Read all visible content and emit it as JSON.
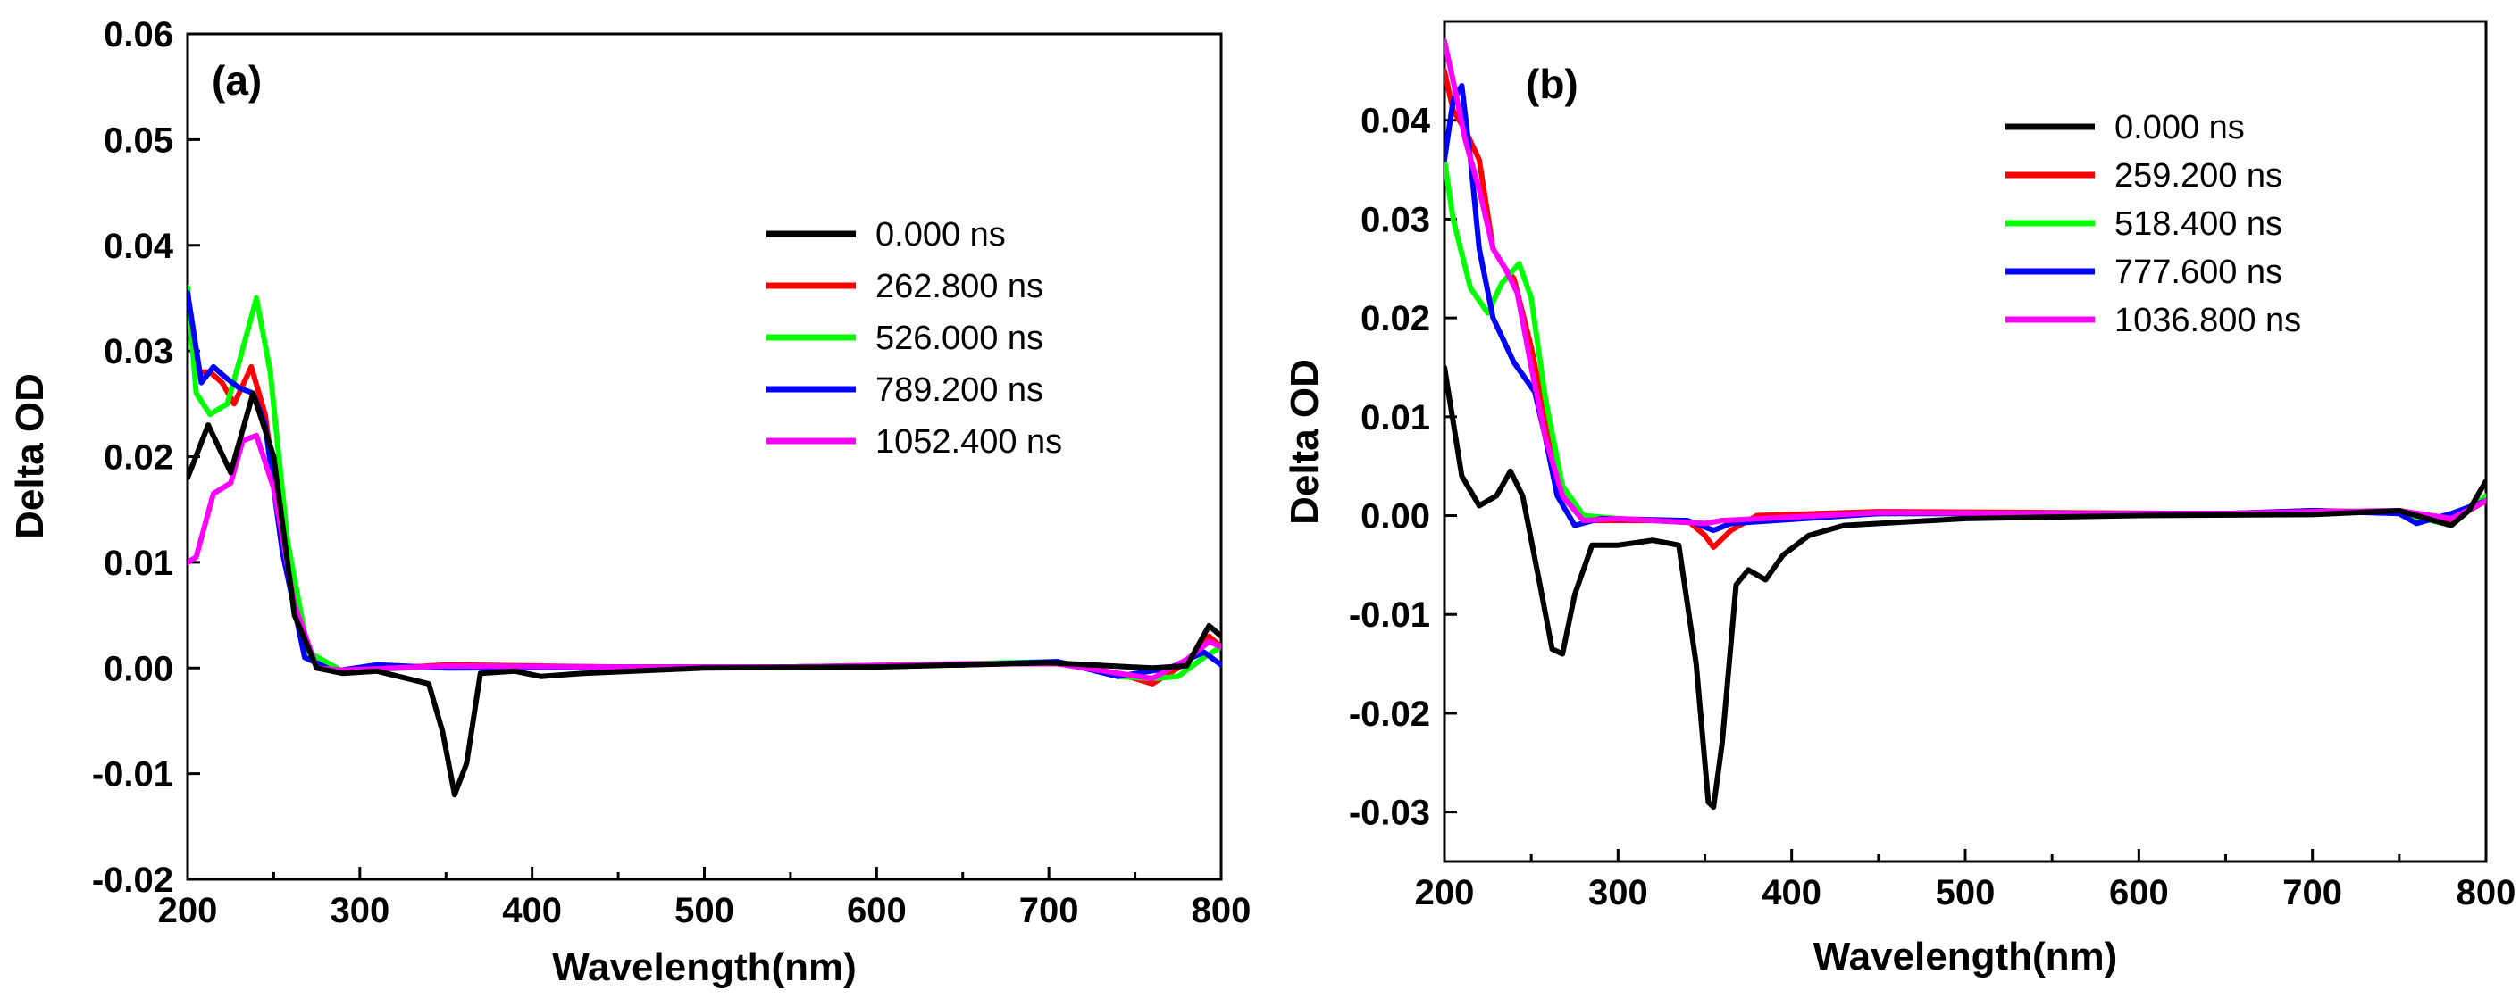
{
  "chart_data": [
    {
      "type": "line",
      "panel_label": "(a)",
      "title": "",
      "xlabel": "Wavelength(nm)",
      "ylabel": "Delta OD",
      "xlim": [
        200,
        800
      ],
      "ylim": [
        -0.02,
        0.06
      ],
      "xticks": [
        200,
        300,
        400,
        500,
        600,
        700,
        800
      ],
      "xtick_labels": [
        "200",
        "300",
        "400",
        "500",
        "600",
        "700",
        "800"
      ],
      "yticks": [
        -0.02,
        -0.01,
        0.0,
        0.01,
        0.02,
        0.03,
        0.04,
        0.05,
        0.06
      ],
      "ytick_labels": [
        "-0.02",
        "-0.01",
        "0.00",
        "0.01",
        "0.02",
        "0.03",
        "0.04",
        "0.05",
        "0.06"
      ],
      "legend_position": "top-right",
      "grid": false,
      "series": [
        {
          "name": "0.000 ns",
          "color": "#000000",
          "x": [
            200,
            212,
            225,
            238,
            250,
            262,
            275,
            290,
            310,
            340,
            348,
            355,
            362,
            370,
            390,
            405,
            430,
            500,
            600,
            700,
            760,
            780,
            793,
            800
          ],
          "y": [
            0.018,
            0.023,
            0.0185,
            0.026,
            0.02,
            0.005,
            0.0,
            -0.0005,
            -0.0003,
            -0.0015,
            -0.006,
            -0.012,
            -0.009,
            -0.0005,
            -0.0003,
            -0.0008,
            -0.0005,
            0.0,
            0.0001,
            0.0005,
            0.0,
            0.0002,
            0.004,
            0.003
          ]
        },
        {
          "name": "262.800 ns",
          "color": "#ff0000",
          "x": [
            200,
            205,
            213,
            220,
            227,
            237,
            245,
            255,
            268,
            290,
            350,
            450,
            550,
            650,
            705,
            740,
            760,
            780,
            793,
            800
          ],
          "y": [
            0.035,
            0.028,
            0.028,
            0.027,
            0.025,
            0.0285,
            0.024,
            0.012,
            0.001,
            -0.0003,
            0.0003,
            0.0001,
            0.0001,
            0.0003,
            0.0005,
            -0.0005,
            -0.0015,
            0.0005,
            0.003,
            0.002
          ]
        },
        {
          "name": "526.000 ns",
          "color": "#00ff00",
          "x": [
            200,
            205,
            213,
            223,
            230,
            240,
            248,
            258,
            270,
            290,
            350,
            450,
            550,
            650,
            705,
            740,
            760,
            775,
            790,
            800
          ],
          "y": [
            0.036,
            0.026,
            0.024,
            0.025,
            0.029,
            0.035,
            0.028,
            0.012,
            0.0015,
            -0.0003,
            0.0002,
            0.0001,
            0.0001,
            0.0004,
            0.0006,
            -0.0008,
            -0.001,
            -0.0008,
            0.001,
            0.002
          ]
        },
        {
          "name": "789.200 ns",
          "color": "#0000ff",
          "x": [
            200,
            208,
            215,
            222,
            230,
            238,
            245,
            255,
            268,
            285,
            310,
            350,
            450,
            550,
            650,
            705,
            740,
            770,
            790,
            800
          ],
          "y": [
            0.0355,
            0.027,
            0.0285,
            0.0275,
            0.0265,
            0.026,
            0.023,
            0.011,
            0.001,
            -0.0003,
            0.0003,
            0.0,
            0.0001,
            0.0001,
            0.0003,
            0.0006,
            -0.0008,
            0.0,
            0.0015,
            0.0003
          ]
        },
        {
          "name": "1052.400 ns",
          "color": "#ff00ff",
          "x": [
            200,
            205,
            215,
            225,
            232,
            240,
            250,
            262,
            275,
            290,
            350,
            450,
            550,
            650,
            705,
            740,
            760,
            780,
            793,
            800
          ],
          "y": [
            0.01,
            0.0105,
            0.0165,
            0.0175,
            0.0215,
            0.022,
            0.017,
            0.006,
            0.0,
            -0.0002,
            0.0002,
            0.0001,
            0.0001,
            0.0004,
            0.0004,
            -0.0005,
            -0.001,
            0.0008,
            0.0025,
            0.002
          ]
        }
      ]
    },
    {
      "type": "line",
      "panel_label": "(b)",
      "title": "",
      "xlabel": "Wavelength(nm)",
      "ylabel": "Delta OD",
      "xlim": [
        200,
        800
      ],
      "ylim": [
        -0.035,
        0.05
      ],
      "xticks": [
        200,
        300,
        400,
        500,
        600,
        700,
        800
      ],
      "xtick_labels": [
        "200",
        "300",
        "400",
        "500",
        "600",
        "700",
        "800"
      ],
      "yticks": [
        -0.03,
        -0.02,
        -0.01,
        0.0,
        0.01,
        0.02,
        0.03,
        0.04
      ],
      "ytick_labels": [
        "-0.03",
        "-0.02",
        "-0.01",
        "0.00",
        "0.01",
        "0.02",
        "0.03",
        "0.04"
      ],
      "legend_position": "top-right",
      "grid": false,
      "series": [
        {
          "name": "0.000 ns",
          "color": "#000000",
          "x": [
            200,
            210,
            220,
            230,
            238,
            245,
            255,
            262,
            268,
            275,
            285,
            300,
            320,
            335,
            345,
            352,
            355,
            360,
            368,
            375,
            385,
            395,
            410,
            430,
            500,
            600,
            700,
            750,
            780,
            790,
            800
          ],
          "y": [
            0.015,
            0.004,
            0.001,
            0.002,
            0.0045,
            0.002,
            -0.007,
            -0.0135,
            -0.014,
            -0.008,
            -0.003,
            -0.003,
            -0.0025,
            -0.003,
            -0.015,
            -0.029,
            -0.0295,
            -0.023,
            -0.007,
            -0.0055,
            -0.0065,
            -0.004,
            -0.002,
            -0.001,
            -0.0003,
            0.0,
            0.0001,
            0.0005,
            -0.001,
            0.0005,
            0.0035
          ]
        },
        {
          "name": "259.200 ns",
          "color": "#ff0000",
          "x": [
            200,
            205,
            212,
            220,
            228,
            235,
            240,
            250,
            258,
            268,
            280,
            300,
            340,
            350,
            355,
            365,
            380,
            450,
            550,
            650,
            700,
            750,
            780,
            800
          ],
          "y": [
            0.045,
            0.041,
            0.039,
            0.036,
            0.027,
            0.025,
            0.024,
            0.017,
            0.01,
            0.002,
            -0.0005,
            -0.0005,
            -0.0005,
            -0.002,
            -0.0032,
            -0.0015,
            0.0,
            0.0004,
            0.0003,
            0.0002,
            0.0005,
            0.0003,
            -0.0005,
            0.0015
          ]
        },
        {
          "name": "518.400 ns",
          "color": "#00ff00",
          "x": [
            200,
            205,
            215,
            225,
            233,
            243,
            250,
            258,
            268,
            280,
            300,
            350,
            360,
            450,
            550,
            650,
            700,
            750,
            780,
            800
          ],
          "y": [
            0.036,
            0.03,
            0.023,
            0.0205,
            0.0235,
            0.0255,
            0.022,
            0.012,
            0.003,
            0.0,
            -0.0003,
            -0.0008,
            -0.0005,
            0.0002,
            0.0002,
            0.0002,
            0.0004,
            0.0003,
            -0.001,
            0.002
          ]
        },
        {
          "name": "777.600 ns",
          "color": "#0000ff",
          "x": [
            200,
            205,
            210,
            215,
            220,
            228,
            240,
            252,
            258,
            265,
            275,
            290,
            340,
            355,
            365,
            450,
            550,
            650,
            700,
            750,
            760,
            780,
            800
          ],
          "y": [
            0.036,
            0.042,
            0.0435,
            0.036,
            0.027,
            0.02,
            0.0155,
            0.0125,
            0.008,
            0.002,
            -0.001,
            -0.0003,
            -0.0005,
            -0.0015,
            -0.0008,
            0.0002,
            0.0002,
            0.0002,
            0.0005,
            0.0002,
            -0.0008,
            0.0002,
            0.0015
          ]
        },
        {
          "name": "1036.800 ns",
          "color": "#ff00ff",
          "x": [
            200,
            205,
            212,
            220,
            228,
            235,
            242,
            250,
            258,
            268,
            280,
            300,
            350,
            360,
            450,
            550,
            650,
            700,
            750,
            780,
            800
          ],
          "y": [
            0.048,
            0.044,
            0.038,
            0.033,
            0.027,
            0.025,
            0.0225,
            0.015,
            0.008,
            0.002,
            -0.0005,
            -0.0003,
            -0.0008,
            -0.0005,
            0.0003,
            0.0002,
            0.0002,
            0.0004,
            0.0005,
            -0.0003,
            0.0015
          ]
        }
      ]
    }
  ]
}
